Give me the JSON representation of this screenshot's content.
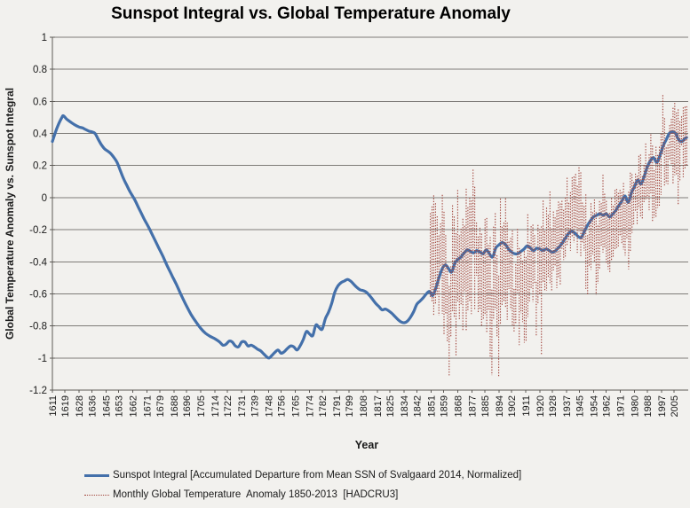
{
  "page": {
    "background": "#f2f1ee"
  },
  "chart_data": {
    "type": "line",
    "title": "Sunspot Integral vs. Global Temperature Anomaly",
    "xlabel": "Year",
    "ylabel": "Global Temperature Anomaly vs. Sunspot Integral",
    "ylim": [
      -1.2,
      1
    ],
    "xlim": [
      1611,
      2014
    ],
    "grid": "horizontal",
    "legend_position": "bottom",
    "colors": {
      "sunspot": "#4470aa",
      "temperature": "#a0433a",
      "gridline": "#7f7c78",
      "axis": "#5d5a56",
      "background": "#f2f1ee",
      "text": "#1a1a1a"
    },
    "y_ticks": [
      "1",
      "0.8",
      "0.6",
      "0.4",
      "0.2",
      "0",
      "-0.2",
      "-0.4",
      "-0.6",
      "-0.8",
      "-1",
      "-1.2"
    ],
    "x_tick_labels": [
      "1611",
      "1619",
      "1628",
      "1636",
      "1645",
      "1653",
      "1662",
      "1671",
      "1679",
      "1688",
      "1696",
      "1705",
      "1714",
      "1722",
      "1731",
      "1739",
      "1748",
      "1756",
      "1765",
      "1774",
      "1782",
      "1791",
      "1799",
      "1808",
      "1817",
      "1825",
      "1834",
      "1842",
      "1851",
      "1859",
      "1868",
      "1877",
      "1885",
      "1894",
      "1902",
      "1911",
      "1920",
      "1928",
      "1937",
      "1945",
      "1954",
      "1962",
      "1971",
      "1980",
      "1988",
      "1997",
      "2005"
    ],
    "series": [
      {
        "name": "Sunspot Integral [Accumulated Departure from Mean SSN of Svalgaard 2014, Normalized]",
        "color": "#4470aa",
        "style": "solid",
        "width": 3.2,
        "points": [
          [
            1611,
            0.35
          ],
          [
            1613,
            0.41
          ],
          [
            1615,
            0.46
          ],
          [
            1617,
            0.5
          ],
          [
            1618,
            0.51
          ],
          [
            1620,
            0.49
          ],
          [
            1622,
            0.475
          ],
          [
            1625,
            0.455
          ],
          [
            1628,
            0.44
          ],
          [
            1630,
            0.435
          ],
          [
            1632,
            0.425
          ],
          [
            1634,
            0.415
          ],
          [
            1636,
            0.41
          ],
          [
            1638,
            0.4
          ],
          [
            1640,
            0.365
          ],
          [
            1642,
            0.33
          ],
          [
            1644,
            0.305
          ],
          [
            1646,
            0.29
          ],
          [
            1648,
            0.275
          ],
          [
            1650,
            0.25
          ],
          [
            1652,
            0.22
          ],
          [
            1654,
            0.17
          ],
          [
            1656,
            0.12
          ],
          [
            1658,
            0.08
          ],
          [
            1660,
            0.04
          ],
          [
            1663,
            -0.01
          ],
          [
            1666,
            -0.07
          ],
          [
            1669,
            -0.13
          ],
          [
            1672,
            -0.185
          ],
          [
            1675,
            -0.245
          ],
          [
            1678,
            -0.305
          ],
          [
            1681,
            -0.365
          ],
          [
            1684,
            -0.43
          ],
          [
            1687,
            -0.49
          ],
          [
            1690,
            -0.55
          ],
          [
            1693,
            -0.615
          ],
          [
            1696,
            -0.675
          ],
          [
            1699,
            -0.73
          ],
          [
            1702,
            -0.775
          ],
          [
            1705,
            -0.815
          ],
          [
            1708,
            -0.845
          ],
          [
            1711,
            -0.865
          ],
          [
            1714,
            -0.88
          ],
          [
            1717,
            -0.9
          ],
          [
            1719,
            -0.92
          ],
          [
            1721,
            -0.915
          ],
          [
            1723,
            -0.895
          ],
          [
            1725,
            -0.9
          ],
          [
            1727,
            -0.925
          ],
          [
            1729,
            -0.93
          ],
          [
            1731,
            -0.9
          ],
          [
            1733,
            -0.9
          ],
          [
            1735,
            -0.925
          ],
          [
            1737,
            -0.92
          ],
          [
            1739,
            -0.93
          ],
          [
            1741,
            -0.945
          ],
          [
            1743,
            -0.955
          ],
          [
            1745,
            -0.975
          ],
          [
            1748,
            -1.0
          ],
          [
            1750,
            -0.985
          ],
          [
            1752,
            -0.965
          ],
          [
            1754,
            -0.95
          ],
          [
            1756,
            -0.97
          ],
          [
            1758,
            -0.96
          ],
          [
            1760,
            -0.94
          ],
          [
            1762,
            -0.925
          ],
          [
            1764,
            -0.93
          ],
          [
            1766,
            -0.95
          ],
          [
            1768,
            -0.925
          ],
          [
            1770,
            -0.885
          ],
          [
            1772,
            -0.835
          ],
          [
            1774,
            -0.85
          ],
          [
            1776,
            -0.86
          ],
          [
            1778,
            -0.795
          ],
          [
            1780,
            -0.81
          ],
          [
            1782,
            -0.82
          ],
          [
            1784,
            -0.755
          ],
          [
            1786,
            -0.715
          ],
          [
            1788,
            -0.66
          ],
          [
            1790,
            -0.59
          ],
          [
            1792,
            -0.55
          ],
          [
            1794,
            -0.53
          ],
          [
            1796,
            -0.52
          ],
          [
            1798,
            -0.51
          ],
          [
            1800,
            -0.52
          ],
          [
            1802,
            -0.54
          ],
          [
            1804,
            -0.56
          ],
          [
            1806,
            -0.575
          ],
          [
            1808,
            -0.58
          ],
          [
            1810,
            -0.59
          ],
          [
            1812,
            -0.61
          ],
          [
            1814,
            -0.635
          ],
          [
            1816,
            -0.66
          ],
          [
            1818,
            -0.68
          ],
          [
            1820,
            -0.7
          ],
          [
            1822,
            -0.695
          ],
          [
            1824,
            -0.705
          ],
          [
            1826,
            -0.72
          ],
          [
            1828,
            -0.74
          ],
          [
            1830,
            -0.76
          ],
          [
            1832,
            -0.775
          ],
          [
            1834,
            -0.78
          ],
          [
            1836,
            -0.77
          ],
          [
            1838,
            -0.745
          ],
          [
            1840,
            -0.71
          ],
          [
            1842,
            -0.665
          ],
          [
            1844,
            -0.645
          ],
          [
            1846,
            -0.625
          ],
          [
            1848,
            -0.6
          ],
          [
            1850,
            -0.585
          ],
          [
            1852,
            -0.61
          ],
          [
            1854,
            -0.565
          ],
          [
            1856,
            -0.5
          ],
          [
            1858,
            -0.445
          ],
          [
            1860,
            -0.42
          ],
          [
            1862,
            -0.44
          ],
          [
            1864,
            -0.465
          ],
          [
            1866,
            -0.41
          ],
          [
            1868,
            -0.385
          ],
          [
            1870,
            -0.37
          ],
          [
            1872,
            -0.345
          ],
          [
            1874,
            -0.325
          ],
          [
            1876,
            -0.335
          ],
          [
            1878,
            -0.345
          ],
          [
            1880,
            -0.33
          ],
          [
            1882,
            -0.34
          ],
          [
            1884,
            -0.35
          ],
          [
            1886,
            -0.325
          ],
          [
            1888,
            -0.35
          ],
          [
            1890,
            -0.37
          ],
          [
            1892,
            -0.315
          ],
          [
            1894,
            -0.295
          ],
          [
            1896,
            -0.28
          ],
          [
            1898,
            -0.29
          ],
          [
            1900,
            -0.32
          ],
          [
            1902,
            -0.34
          ],
          [
            1904,
            -0.35
          ],
          [
            1906,
            -0.35
          ],
          [
            1908,
            -0.335
          ],
          [
            1910,
            -0.32
          ],
          [
            1912,
            -0.3
          ],
          [
            1914,
            -0.315
          ],
          [
            1916,
            -0.33
          ],
          [
            1918,
            -0.315
          ],
          [
            1920,
            -0.32
          ],
          [
            1922,
            -0.33
          ],
          [
            1924,
            -0.32
          ],
          [
            1926,
            -0.33
          ],
          [
            1928,
            -0.34
          ],
          [
            1930,
            -0.33
          ],
          [
            1932,
            -0.31
          ],
          [
            1934,
            -0.285
          ],
          [
            1936,
            -0.255
          ],
          [
            1938,
            -0.225
          ],
          [
            1940,
            -0.21
          ],
          [
            1942,
            -0.22
          ],
          [
            1944,
            -0.24
          ],
          [
            1946,
            -0.25
          ],
          [
            1948,
            -0.215
          ],
          [
            1950,
            -0.175
          ],
          [
            1952,
            -0.145
          ],
          [
            1954,
            -0.12
          ],
          [
            1956,
            -0.11
          ],
          [
            1958,
            -0.1
          ],
          [
            1960,
            -0.11
          ],
          [
            1962,
            -0.1
          ],
          [
            1964,
            -0.12
          ],
          [
            1966,
            -0.105
          ],
          [
            1968,
            -0.08
          ],
          [
            1970,
            -0.05
          ],
          [
            1972,
            -0.02
          ],
          [
            1974,
            0.01
          ],
          [
            1976,
            -0.03
          ],
          [
            1978,
            0.03
          ],
          [
            1980,
            0.07
          ],
          [
            1982,
            0.11
          ],
          [
            1984,
            0.085
          ],
          [
            1986,
            0.13
          ],
          [
            1988,
            0.19
          ],
          [
            1990,
            0.23
          ],
          [
            1992,
            0.25
          ],
          [
            1994,
            0.22
          ],
          [
            1996,
            0.26
          ],
          [
            1998,
            0.32
          ],
          [
            2000,
            0.36
          ],
          [
            2002,
            0.4
          ],
          [
            2004,
            0.41
          ],
          [
            2006,
            0.4
          ],
          [
            2008,
            0.36
          ],
          [
            2010,
            0.35
          ],
          [
            2012,
            0.37
          ],
          [
            2013,
            0.375
          ]
        ]
      },
      {
        "name": "Monthly Global Temperature  Anomaly 1850-2013  [HADCRU3]",
        "color": "#a0433a",
        "style": "dotted",
        "period": "monthly",
        "range": [
          1850,
          2013.95
        ],
        "seed": 20140321,
        "trend_keypoints": [
          [
            1850,
            -0.4
          ],
          [
            1854,
            -0.38
          ],
          [
            1858,
            -0.42
          ],
          [
            1862,
            -0.47
          ],
          [
            1866,
            -0.42
          ],
          [
            1870,
            -0.4
          ],
          [
            1874,
            -0.42
          ],
          [
            1878,
            -0.35
          ],
          [
            1882,
            -0.4
          ],
          [
            1886,
            -0.44
          ],
          [
            1890,
            -0.43
          ],
          [
            1894,
            -0.47
          ],
          [
            1898,
            -0.4
          ],
          [
            1902,
            -0.43
          ],
          [
            1906,
            -0.44
          ],
          [
            1910,
            -0.5
          ],
          [
            1914,
            -0.38
          ],
          [
            1918,
            -0.42
          ],
          [
            1922,
            -0.36
          ],
          [
            1926,
            -0.32
          ],
          [
            1930,
            -0.3
          ],
          [
            1934,
            -0.27
          ],
          [
            1938,
            -0.18
          ],
          [
            1941,
            -0.1
          ],
          [
            1944,
            -0.08
          ],
          [
            1947,
            -0.18
          ],
          [
            1950,
            -0.25
          ],
          [
            1953,
            -0.18
          ],
          [
            1956,
            -0.25
          ],
          [
            1959,
            -0.17
          ],
          [
            1962,
            -0.15
          ],
          [
            1965,
            -0.22
          ],
          [
            1968,
            -0.18
          ],
          [
            1971,
            -0.14
          ],
          [
            1974,
            -0.18
          ],
          [
            1977,
            -0.06
          ],
          [
            1980,
            0.03
          ],
          [
            1983,
            0.04
          ],
          [
            1986,
            0.05
          ],
          [
            1989,
            0.12
          ],
          [
            1991,
            0.18
          ],
          [
            1993,
            0.08
          ],
          [
            1995,
            0.15
          ],
          [
            1997,
            0.2
          ],
          [
            1998,
            0.4
          ],
          [
            1999,
            0.22
          ],
          [
            2001,
            0.3
          ],
          [
            2003,
            0.36
          ],
          [
            2005,
            0.38
          ],
          [
            2007,
            0.35
          ],
          [
            2009,
            0.32
          ],
          [
            2011,
            0.36
          ],
          [
            2013,
            0.4
          ]
        ],
        "noise_sd_eras": [
          [
            1900,
            0.17
          ],
          [
            1945,
            0.125
          ],
          [
            1985,
            0.105
          ],
          [
            2100,
            0.095
          ]
        ],
        "events": [
          [
            1862.6,
            -0.35,
            0.9
          ],
          [
            1871.0,
            -0.15,
            0.6
          ],
          [
            1877.9,
            0.32,
            0.6
          ],
          [
            1883.5,
            -0.15,
            0.7
          ],
          [
            1889.0,
            -0.28,
            0.5
          ],
          [
            1893.3,
            -0.42,
            0.7
          ],
          [
            1899.0,
            0.1,
            0.4
          ],
          [
            1903.6,
            -0.22,
            0.7
          ],
          [
            1907.3,
            -0.15,
            0.5
          ],
          [
            1911.0,
            -0.28,
            0.7
          ],
          [
            1917.6,
            -0.28,
            0.5
          ],
          [
            1926.0,
            0.12,
            0.5
          ],
          [
            1940.9,
            0.12,
            0.9
          ],
          [
            1945.5,
            0.08,
            0.4
          ],
          [
            1950.3,
            -0.12,
            0.5
          ],
          [
            1956.2,
            -0.12,
            0.5
          ],
          [
            1964.0,
            -0.15,
            0.6
          ],
          [
            1969.0,
            0.08,
            0.4
          ],
          [
            1972.9,
            0.1,
            0.35
          ],
          [
            1976.3,
            -0.15,
            0.4
          ],
          [
            1983.1,
            0.12,
            0.35
          ],
          [
            1987.3,
            0.1,
            0.4
          ],
          [
            1992.4,
            -0.15,
            0.7
          ],
          [
            1998.15,
            0.22,
            0.3
          ],
          [
            2008.0,
            -0.1,
            0.4
          ],
          [
            2010.1,
            0.08,
            0.35
          ]
        ]
      }
    ]
  }
}
